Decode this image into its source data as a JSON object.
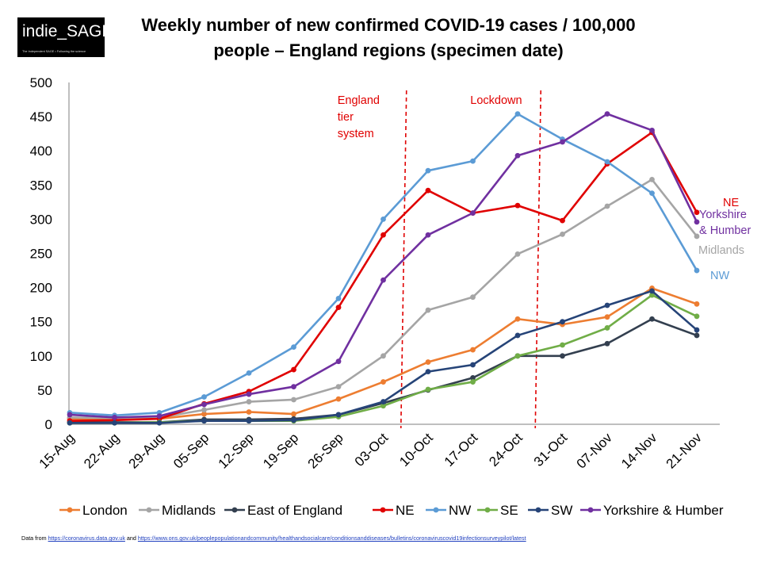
{
  "logo": {
    "name": "indie_SAGE",
    "tagline": "The Independent SAGE • Following the science"
  },
  "title_line1": "Weekly number of new confirmed COVID-19 cases / 100,000",
  "title_line2": "people – England regions (specimen date)",
  "source": {
    "prefix": "Data from ",
    "link1": "https://coronavirus.data.gov.uk",
    "middle": " and ",
    "link2": "https://www.ons.gov.uk/peoplepopulationandcommunity/healthandsocialcare/conditionsanddiseases/bulletins/coronaviruscovid19infectionsurveypilot/latest"
  },
  "chart_data": {
    "type": "line",
    "title": "Weekly number of new confirmed COVID-19 cases / 100,000 people – England regions (specimen date)",
    "xlabel": "",
    "ylabel": "",
    "ylim": [
      0,
      500
    ],
    "yticks": [
      0,
      50,
      100,
      150,
      200,
      250,
      300,
      350,
      400,
      450,
      500
    ],
    "grid": false,
    "legend_position": "bottom",
    "categories": [
      "15-Aug",
      "22-Aug",
      "29-Aug",
      "05-Sep",
      "12-Sep",
      "19-Sep",
      "26-Sep",
      "03-Oct",
      "10-Oct",
      "17-Oct",
      "24-Oct",
      "31-Oct",
      "07-Nov",
      "14-Nov",
      "21-Nov"
    ],
    "series": [
      {
        "name": "London",
        "color": "#ed7d31",
        "values": [
          8,
          8,
          8,
          15,
          18,
          15,
          37,
          62,
          91,
          109,
          154,
          146,
          157,
          199,
          176
        ]
      },
      {
        "name": "Midlands",
        "color": "#a5a5a5",
        "values": [
          10,
          9,
          10,
          21,
          33,
          36,
          55,
          100,
          167,
          186,
          249,
          278,
          319,
          358,
          275
        ]
      },
      {
        "name": "East of England",
        "color": "#333f4f",
        "values": [
          3,
          3,
          3,
          7,
          7,
          8,
          14,
          31,
          50,
          68,
          100,
          100,
          118,
          154,
          130
        ]
      },
      {
        "name": "NE",
        "color": "#e00000",
        "values": [
          5,
          6,
          8,
          30,
          48,
          80,
          171,
          277,
          342,
          309,
          320,
          298,
          381,
          427,
          310
        ]
      },
      {
        "name": "NW",
        "color": "#5b9bd5",
        "values": [
          17,
          13,
          17,
          40,
          75,
          113,
          184,
          300,
          371,
          385,
          454,
          417,
          384,
          338,
          225
        ]
      },
      {
        "name": "SE",
        "color": "#70ad47",
        "values": [
          2,
          2,
          3,
          5,
          5,
          5,
          11,
          27,
          51,
          62,
          100,
          116,
          141,
          189,
          158
        ]
      },
      {
        "name": "SW",
        "color": "#264478",
        "values": [
          2,
          2,
          2,
          5,
          5,
          6,
          14,
          33,
          77,
          87,
          130,
          150,
          174,
          195,
          138
        ]
      },
      {
        "name": "Yorkshire & Humber",
        "color": "#7030a0",
        "values": [
          14,
          10,
          12,
          29,
          44,
          55,
          92,
          211,
          277,
          309,
          393,
          413,
          454,
          430,
          296
        ]
      }
    ],
    "end_labels": [
      {
        "series": "NE",
        "text": "NE",
        "color": "#e00000"
      },
      {
        "series": "Yorkshire & Humber",
        "text": "Yorkshire\n& Humber",
        "color": "#7030a0"
      },
      {
        "series": "Midlands",
        "text": "Midlands",
        "color": "#a5a5a5"
      },
      {
        "series": "NW",
        "text": "NW",
        "color": "#5b9bd5"
      }
    ],
    "annotations": [
      {
        "text": "England\ntier\nsystem",
        "color": "#e00000",
        "between": [
          "03-Oct",
          "10-Oct"
        ]
      },
      {
        "text": "Lockdown",
        "color": "#e00000",
        "between": [
          "24-Oct",
          "31-Oct"
        ]
      }
    ]
  }
}
